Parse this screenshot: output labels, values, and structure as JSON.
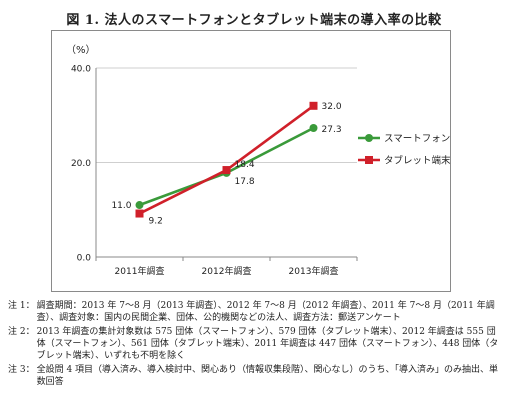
{
  "figure_title": "図 1.  法人のスマートフォンとタブレット端末の導入率の比較",
  "chart_data": {
    "type": "line",
    "ylabel": "（%）",
    "ylim": [
      0,
      40
    ],
    "yticks": [
      "0.0",
      "20.0",
      "40.0"
    ],
    "yticks_values": [
      0,
      20,
      40
    ],
    "categories": [
      "2011年調査",
      "2012年調査",
      "2013年調査"
    ],
    "series": [
      {
        "name": "スマートフォン",
        "values": [
          11.0,
          17.8,
          27.3
        ],
        "labels": [
          "11.0",
          "17.8",
          "27.3"
        ],
        "color": "#3a9a3a",
        "marker": "circle"
      },
      {
        "name": "タブレット端末",
        "values": [
          9.2,
          18.4,
          32.0
        ],
        "labels": [
          "9.2",
          "18.4",
          "32.0"
        ],
        "color": "#d0202a",
        "marker": "square"
      }
    ],
    "legend_position": "right",
    "grid": "horizontal"
  },
  "notes": [
    {
      "label": "注 1：",
      "text": "調査期間：2013 年 7～8 月（2013 年調査）、2012 年 7～8 月（2012 年調査）、2011 年 7～8 月（2011 年調査）、調査対象：国内の民間企業、団体、公的機関などの法人、調査方法：郵送アンケート"
    },
    {
      "label": "注 2：",
      "text": "2013 年調査の集計対象数は 575 団体（スマートフォン）、579 団体（タブレット端末）、2012 年調査は 555 団体（スマートフォン）、561 団体（タブレット端末）、2011 年調査は 447 団体（スマートフォン）、448 団体（タブレット端末）、いずれも不明を除く"
    },
    {
      "label": "注 3：",
      "text": "全設問 4 項目（導入済み、導入検討中、関心あり（情報収集段階）、関心なし）のうち、「導入済み」のみ抽出、単数回答"
    }
  ]
}
